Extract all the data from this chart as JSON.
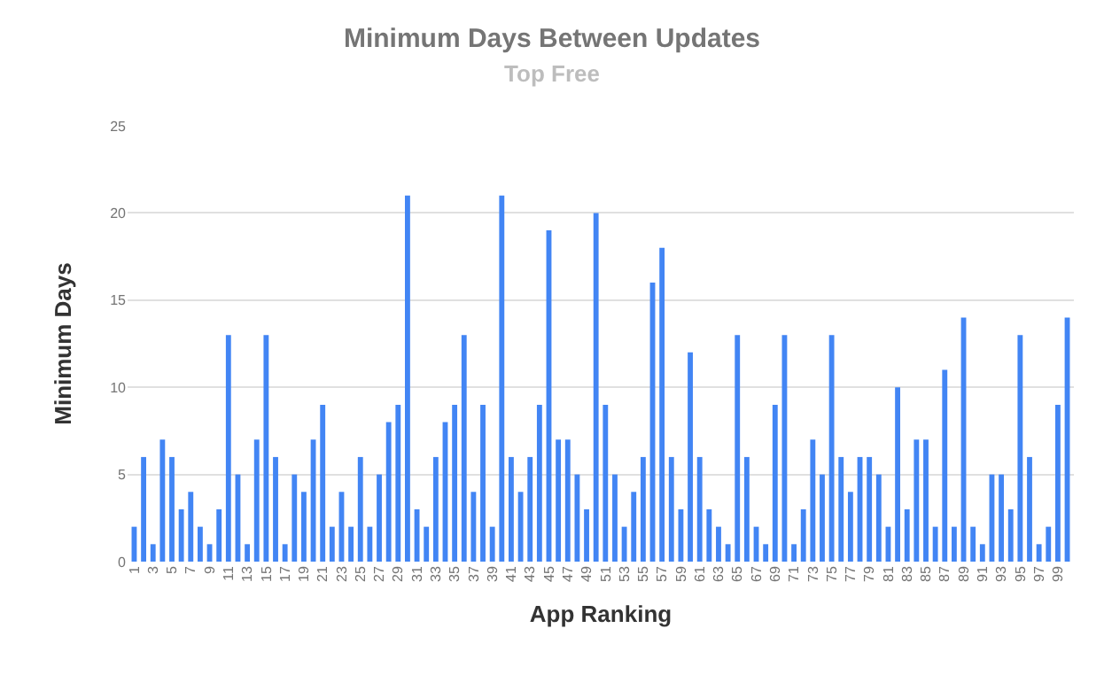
{
  "chart_data": {
    "type": "bar",
    "title": "Minimum Days Between Updates",
    "subtitle": "Top Free",
    "xlabel": "App Ranking",
    "ylabel": "Minimum Days",
    "categories": [
      "1",
      null,
      "3",
      null,
      "5",
      null,
      "7",
      null,
      "9",
      null,
      "11",
      null,
      "13",
      null,
      "15",
      null,
      "17",
      null,
      "19",
      null,
      "21",
      null,
      "23",
      null,
      "25",
      null,
      "27",
      null,
      "29",
      null,
      "31",
      null,
      "33",
      null,
      "35",
      null,
      "37",
      null,
      "39",
      null,
      "41",
      null,
      "43",
      null,
      "45",
      null,
      "47",
      null,
      "49",
      null,
      "51",
      null,
      "53",
      null,
      "55",
      null,
      "57",
      null,
      "59",
      null,
      "61",
      null,
      "63",
      null,
      "65",
      null,
      "67",
      null,
      "69",
      null,
      "71",
      null,
      "73",
      null,
      "75",
      null,
      "77",
      null,
      "79",
      null,
      "81",
      null,
      "83",
      null,
      "85",
      null,
      "87",
      null,
      "89",
      null,
      "91",
      null,
      "93",
      null,
      "95",
      null,
      "97",
      null,
      "99",
      null
    ],
    "values": [
      2,
      6,
      1,
      7,
      6,
      3,
      4,
      2,
      1,
      3,
      13,
      5,
      1,
      7,
      13,
      6,
      1,
      5,
      4,
      7,
      9,
      2,
      4,
      2,
      6,
      2,
      5,
      8,
      9,
      21,
      3,
      2,
      6,
      8,
      9,
      13,
      4,
      9,
      2,
      21,
      6,
      4,
      6,
      9,
      19,
      7,
      7,
      5,
      3,
      20,
      9,
      5,
      2,
      4,
      6,
      16,
      18,
      6,
      3,
      12,
      6,
      3,
      2,
      1,
      13,
      6,
      2,
      1,
      9,
      13,
      1,
      3,
      7,
      5,
      13,
      6,
      4,
      6,
      6,
      5,
      2,
      10,
      3,
      7,
      7,
      2,
      11,
      2,
      14,
      2,
      1,
      5,
      5,
      3,
      13,
      6,
      1,
      2,
      9,
      14
    ],
    "color": "#4285f4",
    "ylim": [
      0,
      25
    ],
    "yticks": [
      0,
      5,
      10,
      15,
      20,
      25
    ],
    "grid": "y",
    "legend": false
  }
}
